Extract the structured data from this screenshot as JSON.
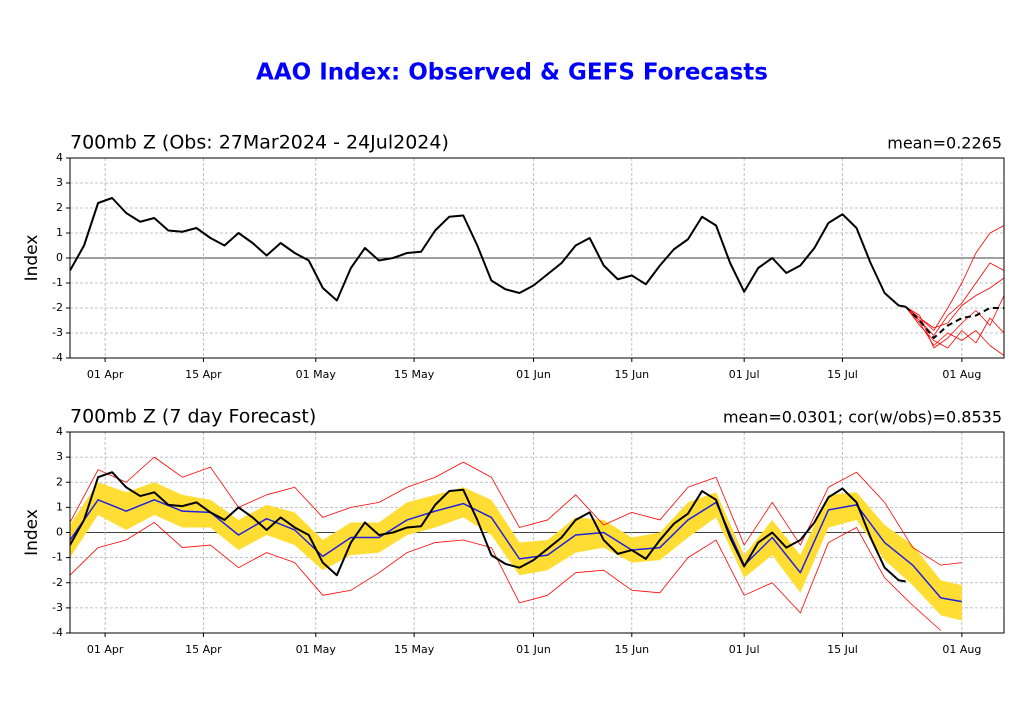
{
  "title": "AAO Index: Observed & GEFS Forecasts",
  "chart_data": [
    {
      "type": "line",
      "title": "700mb Z (Obs: 27Mar2024 - 24Jul2024)",
      "annotation": "mean=0.2265",
      "ylabel": "Index",
      "xlim": [
        "27 Mar",
        "07 Aug"
      ],
      "xticks": [
        {
          "value": "01 Apr",
          "label": "01 Apr"
        },
        {
          "value": "15 Apr",
          "label": "15 Apr"
        },
        {
          "value": "01 May",
          "label": "01 May"
        },
        {
          "value": "15 May",
          "label": "15 May"
        },
        {
          "value": "01 Jun",
          "label": "01 Jun"
        },
        {
          "value": "15 Jun",
          "label": "15 Jun"
        },
        {
          "value": "01 Jul",
          "label": "01 Jul"
        },
        {
          "value": "15 Jul",
          "label": "15 Jul"
        },
        {
          "value": "01 Aug",
          "label": "01 Aug"
        }
      ],
      "ylim": [
        -4,
        4
      ],
      "yticks": [
        -4,
        -3,
        -2,
        -1,
        0,
        1,
        2,
        3,
        4
      ],
      "grid": true,
      "series": [
        {
          "type": "line",
          "color": "#ff0000",
          "linewidth": 0.8,
          "x": [
            "24 Jul",
            "26 Jul",
            "28 Jul",
            "30 Jul",
            "01 Aug",
            "03 Aug",
            "05 Aug",
            "07 Aug"
          ],
          "values": [
            -1.95,
            -2.4,
            -2.9,
            -2.0,
            -1.0,
            0.2,
            1.0,
            1.3
          ]
        },
        {
          "type": "line",
          "color": "#ff0000",
          "linewidth": 0.8,
          "x": [
            "24 Jul",
            "26 Jul",
            "28 Jul",
            "30 Jul",
            "01 Aug",
            "03 Aug",
            "05 Aug",
            "07 Aug"
          ],
          "values": [
            -1.95,
            -2.6,
            -3.5,
            -3.0,
            -3.3,
            -2.9,
            -3.5,
            -3.9
          ]
        },
        {
          "type": "line",
          "color": "#ff0000",
          "linewidth": 0.8,
          "x": [
            "24 Jul",
            "26 Jul",
            "28 Jul",
            "30 Jul",
            "01 Aug",
            "03 Aug",
            "05 Aug",
            "07 Aug"
          ],
          "values": [
            -1.95,
            -2.5,
            -3.1,
            -2.3,
            -1.8,
            -1.0,
            -0.2,
            -0.5
          ]
        },
        {
          "type": "line",
          "color": "#ff0000",
          "linewidth": 0.8,
          "x": [
            "24 Jul",
            "26 Jul",
            "28 Jul",
            "30 Jul",
            "01 Aug",
            "03 Aug",
            "05 Aug",
            "07 Aug"
          ],
          "values": [
            -1.95,
            -2.3,
            -3.6,
            -3.2,
            -2.6,
            -2.1,
            -2.7,
            -1.5
          ]
        },
        {
          "type": "line",
          "color": "#ff0000",
          "linewidth": 0.8,
          "x": [
            "24 Jul",
            "26 Jul",
            "28 Jul",
            "30 Jul",
            "01 Aug",
            "03 Aug",
            "05 Aug",
            "07 Aug"
          ],
          "values": [
            -1.95,
            -2.7,
            -3.3,
            -3.6,
            -2.9,
            -3.4,
            -2.4,
            -3.0
          ]
        },
        {
          "type": "line",
          "color": "#ff0000",
          "linewidth": 0.8,
          "x": [
            "24 Jul",
            "26 Jul",
            "28 Jul",
            "30 Jul",
            "01 Aug",
            "03 Aug",
            "05 Aug",
            "07 Aug"
          ],
          "values": [
            -1.95,
            -2.4,
            -2.8,
            -2.6,
            -1.9,
            -1.5,
            -1.2,
            -0.8
          ]
        },
        {
          "type": "line",
          "color": "#000000",
          "linewidth": 2,
          "dashed": true,
          "x": [
            "24 Jul",
            "26 Jul",
            "28 Jul",
            "30 Jul",
            "01 Aug",
            "03 Aug",
            "05 Aug",
            "07 Aug"
          ],
          "values": [
            -1.95,
            -2.5,
            -3.2,
            -2.7,
            -2.4,
            -2.3,
            -2.0,
            -2.0
          ]
        },
        {
          "type": "line",
          "color": "#000000",
          "linewidth": 2,
          "x": [
            "27 Mar",
            "29 Mar",
            "31 Mar",
            "02 Apr",
            "04 Apr",
            "06 Apr",
            "08 Apr",
            "10 Apr",
            "12 Apr",
            "14 Apr",
            "16 Apr",
            "18 Apr",
            "20 Apr",
            "22 Apr",
            "24 Apr",
            "26 Apr",
            "28 Apr",
            "30 Apr",
            "02 May",
            "04 May",
            "06 May",
            "08 May",
            "10 May",
            "12 May",
            "14 May",
            "16 May",
            "18 May",
            "20 May",
            "22 May",
            "24 May",
            "26 May",
            "28 May",
            "30 May",
            "01 Jun",
            "03 Jun",
            "05 Jun",
            "07 Jun",
            "09 Jun",
            "11 Jun",
            "13 Jun",
            "15 Jun",
            "17 Jun",
            "19 Jun",
            "21 Jun",
            "23 Jun",
            "25 Jun",
            "27 Jun",
            "29 Jun",
            "01 Jul",
            "03 Jul",
            "05 Jul",
            "07 Jul",
            "09 Jul",
            "11 Jul",
            "13 Jul",
            "15 Jul",
            "17 Jul",
            "19 Jul",
            "21 Jul",
            "23 Jul",
            "24 Jul"
          ],
          "values": [
            -0.5,
            0.5,
            2.2,
            2.4,
            1.8,
            1.45,
            1.6,
            1.1,
            1.05,
            1.2,
            0.8,
            0.5,
            1.0,
            0.6,
            0.1,
            0.6,
            0.2,
            -0.1,
            -1.2,
            -1.7,
            -0.4,
            0.4,
            -0.1,
            0.0,
            0.2,
            0.25,
            1.1,
            1.65,
            1.7,
            0.5,
            -0.9,
            -1.25,
            -1.4,
            -1.1,
            -0.65,
            -0.2,
            0.5,
            0.8,
            -0.3,
            -0.85,
            -0.7,
            -1.05,
            -0.3,
            0.35,
            0.75,
            1.65,
            1.3,
            -0.2,
            -1.35,
            -0.4,
            0.0,
            -0.6,
            -0.3,
            0.4,
            1.4,
            1.75,
            1.2,
            -0.2,
            -1.4,
            -1.9,
            -1.95
          ]
        }
      ]
    },
    {
      "type": "line",
      "title": "700mb Z (7 day Forecast)",
      "annotation": "mean=0.0301; cor(w/obs)=0.8535",
      "ylabel": "Index",
      "xlim": [
        "27 Mar",
        "07 Aug"
      ],
      "xticks": [
        {
          "value": "01 Apr",
          "label": "01 Apr"
        },
        {
          "value": "15 Apr",
          "label": "15 Apr"
        },
        {
          "value": "01 May",
          "label": "01 May"
        },
        {
          "value": "15 May",
          "label": "15 May"
        },
        {
          "value": "01 Jun",
          "label": "01 Jun"
        },
        {
          "value": "15 Jun",
          "label": "15 Jun"
        },
        {
          "value": "01 Jul",
          "label": "01 Jul"
        },
        {
          "value": "15 Jul",
          "label": "15 Jul"
        },
        {
          "value": "01 Aug",
          "label": "01 Aug"
        }
      ],
      "ylim": [
        -4,
        4
      ],
      "yticks": [
        -4,
        -3,
        -2,
        -1,
        0,
        1,
        2,
        3,
        4
      ],
      "grid": true,
      "series": [
        {
          "type": "band",
          "color": "#ffdd33",
          "x": [
            "27 Mar",
            "31 Mar",
            "04 Apr",
            "08 Apr",
            "12 Apr",
            "16 Apr",
            "20 Apr",
            "24 Apr",
            "28 Apr",
            "02 May",
            "06 May",
            "10 May",
            "14 May",
            "18 May",
            "22 May",
            "26 May",
            "30 May",
            "03 Jun",
            "07 Jun",
            "11 Jun",
            "15 Jun",
            "19 Jun",
            "23 Jun",
            "27 Jun",
            "01 Jul",
            "05 Jul",
            "09 Jul",
            "13 Jul",
            "17 Jul",
            "21 Jul",
            "25 Jul",
            "29 Jul",
            "01 Aug"
          ],
          "upper": [
            0.3,
            2.0,
            1.6,
            2.0,
            1.5,
            1.3,
            0.5,
            1.1,
            0.8,
            -0.3,
            0.4,
            0.4,
            1.2,
            1.5,
            1.8,
            1.3,
            -0.4,
            -0.3,
            0.6,
            0.5,
            -0.2,
            0.0,
            1.2,
            1.6,
            -0.9,
            0.5,
            -0.9,
            1.5,
            1.6,
            0.3,
            -0.5,
            -1.9,
            -2.1
          ],
          "lower": [
            -1.0,
            0.7,
            0.1,
            0.7,
            0.2,
            0.2,
            -0.7,
            -0.1,
            -0.5,
            -1.5,
            -0.9,
            -0.8,
            -0.1,
            0.2,
            0.6,
            -0.1,
            -1.7,
            -1.5,
            -0.8,
            -0.6,
            -1.2,
            -1.1,
            -0.2,
            0.6,
            -1.8,
            -0.9,
            -2.4,
            0.2,
            0.5,
            -1.1,
            -2.1,
            -3.3,
            -3.5
          ]
        },
        {
          "type": "line",
          "color": "#ff0000",
          "linewidth": 0.8,
          "x": [
            "27 Mar",
            "31 Mar",
            "04 Apr",
            "08 Apr",
            "12 Apr",
            "16 Apr",
            "20 Apr",
            "24 Apr",
            "28 Apr",
            "02 May",
            "06 May",
            "10 May",
            "14 May",
            "18 May",
            "22 May",
            "26 May",
            "30 May",
            "03 Jun",
            "07 Jun",
            "11 Jun",
            "15 Jun",
            "19 Jun",
            "23 Jun",
            "27 Jun",
            "01 Jul",
            "05 Jul",
            "09 Jul",
            "13 Jul",
            "17 Jul",
            "21 Jul",
            "25 Jul",
            "29 Jul",
            "01 Aug"
          ],
          "values": [
            0.4,
            2.5,
            2.0,
            3.0,
            2.2,
            2.6,
            1.0,
            1.5,
            1.8,
            0.6,
            1.0,
            1.2,
            1.8,
            2.2,
            2.8,
            2.2,
            0.2,
            0.5,
            1.5,
            0.3,
            0.8,
            0.5,
            1.8,
            2.2,
            -0.5,
            1.2,
            -0.5,
            1.8,
            2.4,
            1.2,
            -0.6,
            -1.3,
            -1.2
          ]
        },
        {
          "type": "line",
          "color": "#ff0000",
          "linewidth": 0.8,
          "x": [
            "27 Mar",
            "31 Mar",
            "04 Apr",
            "08 Apr",
            "12 Apr",
            "16 Apr",
            "20 Apr",
            "24 Apr",
            "28 Apr",
            "02 May",
            "06 May",
            "10 May",
            "14 May",
            "18 May",
            "22 May",
            "26 May",
            "30 May",
            "03 Jun",
            "07 Jun",
            "11 Jun",
            "15 Jun",
            "19 Jun",
            "23 Jun",
            "27 Jun",
            "01 Jul",
            "05 Jul",
            "09 Jul",
            "13 Jul",
            "17 Jul",
            "21 Jul",
            "25 Jul",
            "29 Jul",
            "01 Aug"
          ],
          "values": [
            -1.7,
            -0.6,
            -0.3,
            0.4,
            -0.6,
            -0.5,
            -1.4,
            -0.8,
            -1.2,
            -2.5,
            -2.3,
            -1.6,
            -0.8,
            -0.4,
            -0.3,
            -0.6,
            -2.8,
            -2.5,
            -1.6,
            -1.5,
            -2.3,
            -2.4,
            -1.0,
            -0.3,
            -2.5,
            -2.0,
            -3.2,
            -0.4,
            0.2,
            -1.8,
            -2.9,
            -3.9,
            null
          ]
        },
        {
          "type": "line",
          "color": "#2222dd",
          "linewidth": 1.5,
          "x": [
            "27 Mar",
            "31 Mar",
            "04 Apr",
            "08 Apr",
            "12 Apr",
            "16 Apr",
            "20 Apr",
            "24 Apr",
            "28 Apr",
            "02 May",
            "06 May",
            "10 May",
            "14 May",
            "18 May",
            "22 May",
            "26 May",
            "30 May",
            "03 Jun",
            "07 Jun",
            "11 Jun",
            "15 Jun",
            "19 Jun",
            "23 Jun",
            "27 Jun",
            "01 Jul",
            "05 Jul",
            "09 Jul",
            "13 Jul",
            "17 Jul",
            "21 Jul",
            "25 Jul",
            "29 Jul",
            "01 Aug"
          ],
          "values": [
            -0.3,
            1.3,
            0.85,
            1.3,
            0.85,
            0.8,
            -0.1,
            0.55,
            0.1,
            -0.95,
            -0.2,
            -0.2,
            0.5,
            0.85,
            1.15,
            0.6,
            -1.05,
            -0.9,
            -0.1,
            0.0,
            -0.7,
            -0.6,
            0.5,
            1.2,
            -1.3,
            -0.2,
            -1.6,
            0.9,
            1.1,
            -0.4,
            -1.3,
            -2.6,
            -2.75
          ]
        },
        {
          "type": "line",
          "color": "#000000",
          "linewidth": 2,
          "x": [
            "27 Mar",
            "29 Mar",
            "31 Mar",
            "02 Apr",
            "04 Apr",
            "06 Apr",
            "08 Apr",
            "10 Apr",
            "12 Apr",
            "14 Apr",
            "16 Apr",
            "18 Apr",
            "20 Apr",
            "22 Apr",
            "24 Apr",
            "26 Apr",
            "28 Apr",
            "30 Apr",
            "02 May",
            "04 May",
            "06 May",
            "08 May",
            "10 May",
            "12 May",
            "14 May",
            "16 May",
            "18 May",
            "20 May",
            "22 May",
            "24 May",
            "26 May",
            "28 May",
            "30 May",
            "01 Jun",
            "03 Jun",
            "05 Jun",
            "07 Jun",
            "09 Jun",
            "11 Jun",
            "13 Jun",
            "15 Jun",
            "17 Jun",
            "19 Jun",
            "21 Jun",
            "23 Jun",
            "25 Jun",
            "27 Jun",
            "29 Jun",
            "01 Jul",
            "03 Jul",
            "05 Jul",
            "07 Jul",
            "09 Jul",
            "11 Jul",
            "13 Jul",
            "15 Jul",
            "17 Jul",
            "19 Jul",
            "21 Jul",
            "23 Jul",
            "24 Jul"
          ],
          "values": [
            -0.5,
            0.5,
            2.2,
            2.4,
            1.8,
            1.45,
            1.6,
            1.1,
            1.05,
            1.2,
            0.8,
            0.5,
            1.0,
            0.6,
            0.1,
            0.6,
            0.2,
            -0.1,
            -1.2,
            -1.7,
            -0.4,
            0.4,
            -0.1,
            0.0,
            0.2,
            0.25,
            1.1,
            1.65,
            1.7,
            0.5,
            -0.9,
            -1.25,
            -1.4,
            -1.1,
            -0.65,
            -0.2,
            0.5,
            0.8,
            -0.3,
            -0.85,
            -0.7,
            -1.05,
            -0.3,
            0.35,
            0.75,
            1.65,
            1.3,
            -0.2,
            -1.35,
            -0.4,
            0.0,
            -0.6,
            -0.3,
            0.4,
            1.4,
            1.75,
            1.2,
            -0.2,
            -1.4,
            -1.9,
            -1.95
          ]
        }
      ]
    }
  ]
}
